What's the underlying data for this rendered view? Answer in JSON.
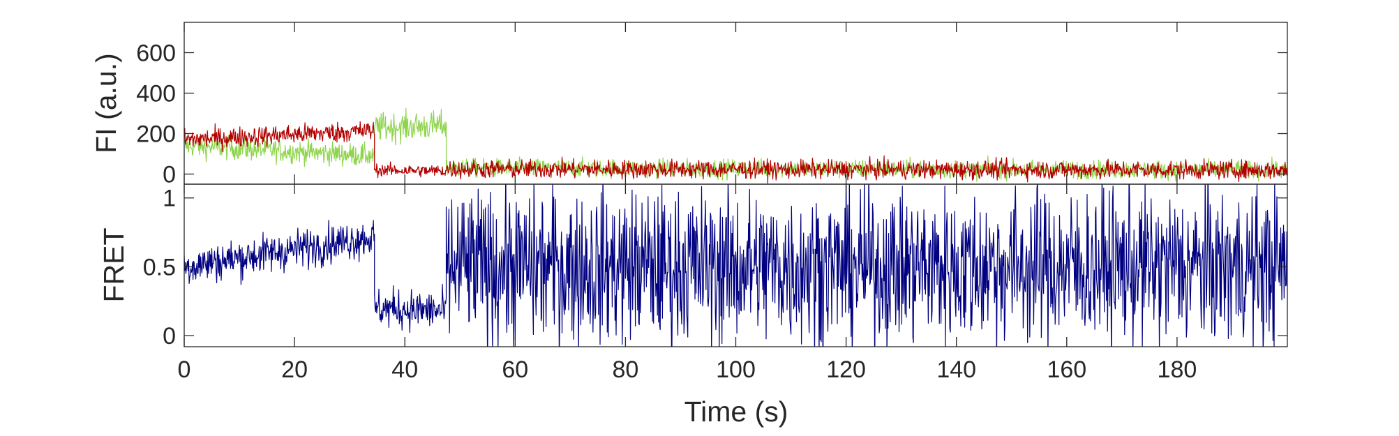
{
  "colors": {
    "donor": "#8ed44c",
    "acceptor": "#b30000",
    "fret": "#000080",
    "axis": "#262626"
  },
  "chart_data": [
    {
      "type": "line",
      "panel": "top",
      "ylabel": "FI (a.u.)",
      "xlabel": "",
      "xlim": [
        0,
        200
      ],
      "ylim": [
        -50,
        750
      ],
      "x_ticks": [
        0,
        20,
        40,
        60,
        80,
        100,
        120,
        140,
        160,
        180
      ],
      "y_ticks": [
        0,
        200,
        400,
        600
      ],
      "y_tick_labels": [
        "0",
        "200",
        "400",
        "600"
      ],
      "grid": false,
      "series": [
        {
          "color": "#8ed44c",
          "segments": [
            {
              "x": [
                0,
                34.5
              ],
              "start": 140,
              "end": 90,
              "noise": 55
            },
            {
              "x": [
                34.5,
                47.5
              ],
              "start": 230,
              "end": 240,
              "noise": 70
            },
            {
              "x": [
                47.5,
                200
              ],
              "start": 30,
              "end": 20,
              "noise": 45
            }
          ]
        },
        {
          "color": "#b30000",
          "segments": [
            {
              "x": [
                0,
                34.5
              ],
              "start": 170,
              "end": 215,
              "noise": 50
            },
            {
              "x": [
                34.5,
                47.5
              ],
              "start": 20,
              "end": 15,
              "noise": 30
            },
            {
              "x": [
                47.5,
                200
              ],
              "start": 25,
              "end": 20,
              "noise": 45
            }
          ]
        }
      ]
    },
    {
      "type": "line",
      "panel": "bottom",
      "ylabel": "FRET",
      "xlabel": "Time (s)",
      "xlim": [
        0,
        200
      ],
      "ylim": [
        -0.08,
        1.1
      ],
      "x_ticks": [
        0,
        20,
        40,
        60,
        80,
        100,
        120,
        140,
        160,
        180
      ],
      "x_tick_labels": [
        "0",
        "20",
        "40",
        "60",
        "80",
        "100",
        "120",
        "140",
        "160",
        "180"
      ],
      "y_ticks": [
        0,
        0.5,
        1
      ],
      "y_tick_labels": [
        "0",
        "0.5",
        "1"
      ],
      "grid": false,
      "series": [
        {
          "color": "#000080",
          "segments": [
            {
              "x": [
                0,
                34.5
              ],
              "start": 0.5,
              "end": 0.72,
              "noise": 0.14
            },
            {
              "x": [
                34.5,
                47.5
              ],
              "start": 0.2,
              "end": 0.18,
              "noise": 0.14
            },
            {
              "x": [
                47.5,
                200
              ],
              "start": 0.5,
              "end": 0.5,
              "noise": 0.55
            }
          ]
        }
      ]
    }
  ]
}
